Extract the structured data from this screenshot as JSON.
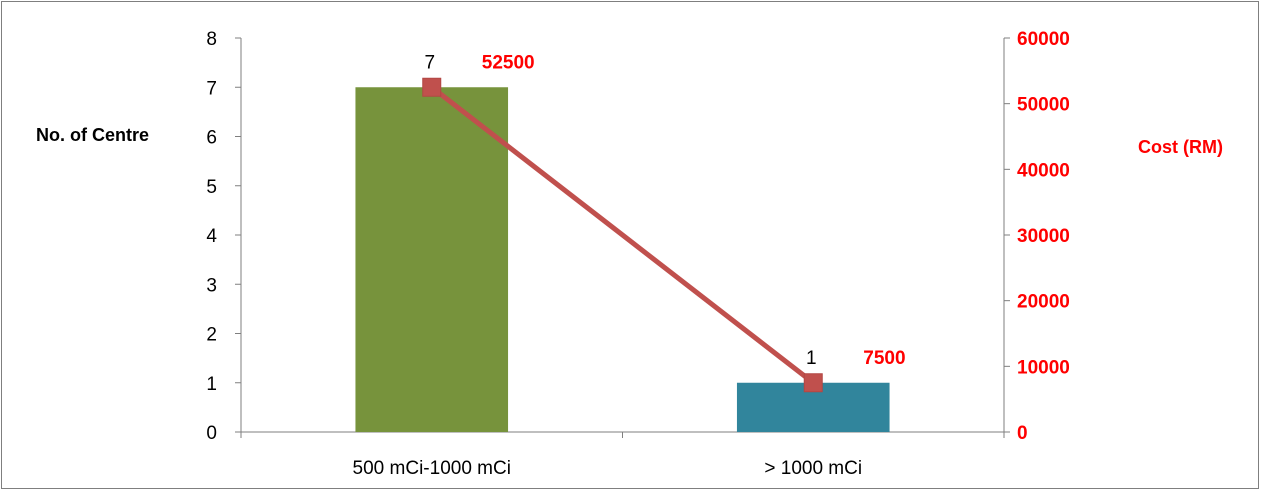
{
  "chart_data": {
    "type": "bar+line",
    "categories": [
      "500 mCi-1000 mCi",
      "> 1000 mCi"
    ],
    "series": [
      {
        "name": "",
        "kind": "bar",
        "axis": "left",
        "values": [
          7,
          1
        ],
        "colors": [
          "#77933c",
          "#31859c"
        ],
        "data_labels": [
          "7",
          "1"
        ]
      },
      {
        "name": "",
        "kind": "line",
        "axis": "right",
        "values": [
          52500,
          7500
        ],
        "color": "#c0504d",
        "marker": "square",
        "data_labels": [
          "52500",
          "7500"
        ]
      }
    ],
    "y_left": {
      "label": "No. of Centre",
      "ylim": [
        0,
        8
      ],
      "ticks": [
        "0",
        "1",
        "2",
        "3",
        "4",
        "5",
        "6",
        "7",
        "8"
      ]
    },
    "y_right": {
      "label": "Cost (RM)",
      "ylim": [
        0,
        60000
      ],
      "ticks": [
        "0",
        "10000",
        "20000",
        "30000",
        "40000",
        "50000",
        "60000"
      ],
      "color": "#ff0000"
    },
    "grid": false,
    "legend": "none",
    "title": "",
    "xlabel": ""
  }
}
